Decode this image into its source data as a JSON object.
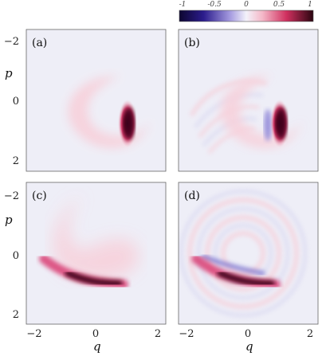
{
  "chart_data": {
    "type": "heatmap",
    "colorbar": {
      "ticks": [
        "-1",
        "-0.5",
        "0",
        "0.5",
        "1"
      ],
      "range": [
        -1,
        1
      ],
      "colors": {
        "neg": "#1b1464",
        "zero": "#f1f0f8",
        "pos": "#3a0717"
      }
    },
    "panels": [
      {
        "label": "(a)",
        "xticks": [],
        "yticks": [
          "−2",
          "0",
          "2"
        ],
        "ylabel": "p",
        "xlabel": "",
        "features": [
          {
            "kind": "crescent",
            "center": [
              0.1,
              0.6
            ],
            "radius": 1.3,
            "peak_q": 1.05,
            "peak_p": 0.75,
            "peak": 1.0
          }
        ]
      },
      {
        "label": "(b)",
        "xticks": [],
        "yticks": [],
        "ylabel": "",
        "xlabel": "",
        "features": [
          {
            "kind": "crescent",
            "center": [
              0.1,
              0.6
            ],
            "radius": 1.3,
            "peak_q": 1.05,
            "peak_p": 0.75,
            "peak": 1.0
          },
          {
            "kind": "fringes",
            "min": -0.5,
            "max": 0.3
          }
        ]
      },
      {
        "label": "(c)",
        "xticks": [
          "−2",
          "0",
          "2"
        ],
        "yticks": [
          "−2",
          "0",
          "2"
        ],
        "ylabel": "p",
        "xlabel": "q",
        "features": [
          {
            "kind": "arc",
            "from_q": -1.5,
            "to_q": 0.6,
            "peak_q": -0.1,
            "peak_p": 0.95,
            "peak": 1.0
          }
        ]
      },
      {
        "label": "(d)",
        "xticks": [
          "−2",
          "0",
          "2"
        ],
        "yticks": [],
        "ylabel": "",
        "xlabel": "q",
        "features": [
          {
            "kind": "arc",
            "from_q": -1.5,
            "to_q": 0.6,
            "peak_q": -0.1,
            "peak_p": 0.95,
            "peak": 1.0
          },
          {
            "kind": "fringes",
            "min": -0.6,
            "max": 0.4
          }
        ]
      }
    ],
    "xlim": [
      -2.5,
      2.5
    ],
    "ylim": [
      -2.5,
      2.5
    ],
    "x_values": [
      "−2",
      "0",
      "2"
    ],
    "y_values": [
      "−2",
      "0",
      "2"
    ]
  }
}
